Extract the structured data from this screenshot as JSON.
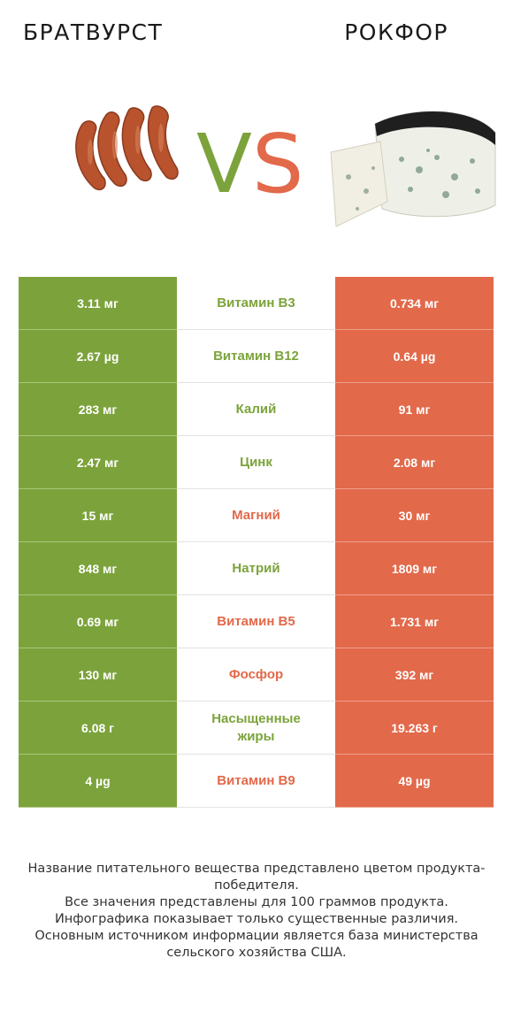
{
  "header": {
    "left_title": "БРАТВУРСТ",
    "right_title": "РОКФОР",
    "vs_v": "V",
    "vs_s": "S"
  },
  "colors": {
    "left_accent": "#7ca33b",
    "right_accent": "#e2694a"
  },
  "rows": [
    {
      "left": "3.11 мг",
      "name": "Витамин B3",
      "right": "0.734 мг",
      "winner": "left"
    },
    {
      "left": "2.67 µg",
      "name": "Витамин B12",
      "right": "0.64 µg",
      "winner": "left"
    },
    {
      "left": "283 мг",
      "name": "Калий",
      "right": "91 мг",
      "winner": "left"
    },
    {
      "left": "2.47 мг",
      "name": "Цинк",
      "right": "2.08 мг",
      "winner": "left"
    },
    {
      "left": "15 мг",
      "name": "Магний",
      "right": "30 мг",
      "winner": "right"
    },
    {
      "left": "848 мг",
      "name": "Натрий",
      "right": "1809 мг",
      "winner": "left"
    },
    {
      "left": "0.69 мг",
      "name": "Витамин B5",
      "right": "1.731 мг",
      "winner": "right"
    },
    {
      "left": "130 мг",
      "name": "Фосфор",
      "right": "392 мг",
      "winner": "right"
    },
    {
      "left": "6.08 г",
      "name": "Насыщенные жиры",
      "right": "19.263 г",
      "winner": "left"
    },
    {
      "left": "4 µg",
      "name": "Витамин B9",
      "right": "49 µg",
      "winner": "right"
    }
  ],
  "footer": {
    "line1": "Название питательного вещества представлено цветом продукта-победителя.",
    "line2": "Все значения представлены для 100 граммов продукта.",
    "line3": "Инфографика показывает только существенные различия.",
    "line4": "Основным источником информации является база министерства сельского хозяйства США."
  }
}
